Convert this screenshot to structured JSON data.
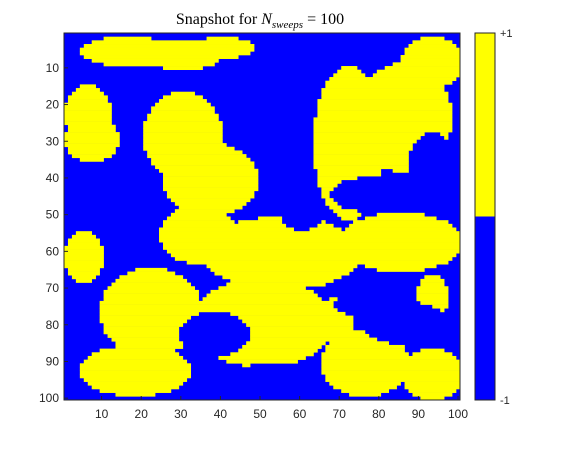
{
  "chart_data": {
    "type": "heatmap",
    "title": {
      "prefix": "Snapshot for ",
      "variable": "N",
      "subscript": "sweeps",
      "suffix": " = 100"
    },
    "grid_size": [
      100,
      100
    ],
    "x_ticks": [
      10,
      20,
      30,
      40,
      50,
      60,
      70,
      80,
      90,
      100
    ],
    "y_ticks": [
      10,
      20,
      30,
      40,
      50,
      60,
      70,
      80,
      90,
      100
    ],
    "y_direction": "reverse",
    "values": [
      -1,
      1
    ],
    "colormap": [
      {
        "value": -1,
        "color": "#0000ff"
      },
      {
        "value": 1,
        "color": "#ffff00"
      }
    ],
    "colorbar": {
      "position": "right",
      "top_label": "+1",
      "bottom_label": "-1"
    },
    "regions_value_plus1": [
      {
        "cx": 16,
        "cy": 5,
        "rx": 12,
        "ry": 4
      },
      {
        "cx": 30,
        "cy": 6,
        "rx": 10,
        "ry": 4
      },
      {
        "cx": 40,
        "cy": 4,
        "rx": 8,
        "ry": 3
      },
      {
        "cx": 6,
        "cy": 22,
        "rx": 6,
        "ry": 8
      },
      {
        "cx": 7,
        "cy": 29,
        "rx": 7,
        "ry": 6
      },
      {
        "cx": 30,
        "cy": 28,
        "rx": 10,
        "ry": 12
      },
      {
        "cx": 37,
        "cy": 40,
        "rx": 12,
        "ry": 10
      },
      {
        "cx": 34,
        "cy": 55,
        "rx": 10,
        "ry": 8
      },
      {
        "cx": 55,
        "cy": 60,
        "rx": 20,
        "ry": 10
      },
      {
        "cx": 5,
        "cy": 61,
        "rx": 5,
        "ry": 7
      },
      {
        "cx": 22,
        "cy": 76,
        "rx": 13,
        "ry": 12
      },
      {
        "cx": 18,
        "cy": 92,
        "rx": 14,
        "ry": 7
      },
      {
        "cx": 50,
        "cy": 79,
        "rx": 18,
        "ry": 12
      },
      {
        "cx": 72,
        "cy": 30,
        "rx": 9,
        "ry": 21
      },
      {
        "cx": 86,
        "cy": 23,
        "rx": 12,
        "ry": 15
      },
      {
        "cx": 93,
        "cy": 8,
        "rx": 8,
        "ry": 7
      },
      {
        "cx": 85,
        "cy": 57,
        "rx": 16,
        "ry": 8
      },
      {
        "cx": 76,
        "cy": 90,
        "rx": 11,
        "ry": 9
      },
      {
        "cx": 93,
        "cy": 93,
        "rx": 8,
        "ry": 7
      },
      {
        "cx": 69,
        "cy": 78,
        "rx": 4,
        "ry": 6
      },
      {
        "cx": 93,
        "cy": 72,
        "rx": 4,
        "ry": 6
      }
    ],
    "regions_value_minus1": [
      {
        "cx": 38,
        "cy": 82,
        "rx": 9,
        "ry": 6
      },
      {
        "cx": 79,
        "cy": 44,
        "rx": 12,
        "ry": 5
      },
      {
        "cx": 52,
        "cy": 95,
        "rx": 12,
        "ry": 5
      },
      {
        "cx": 86,
        "cy": 79,
        "rx": 11,
        "ry": 6
      },
      {
        "cx": 74,
        "cy": 74,
        "rx": 6,
        "ry": 3
      },
      {
        "cx": 93,
        "cy": 35,
        "rx": 6,
        "ry": 8
      },
      {
        "cx": 60,
        "cy": 50,
        "rx": 5,
        "ry": 4
      }
    ]
  }
}
